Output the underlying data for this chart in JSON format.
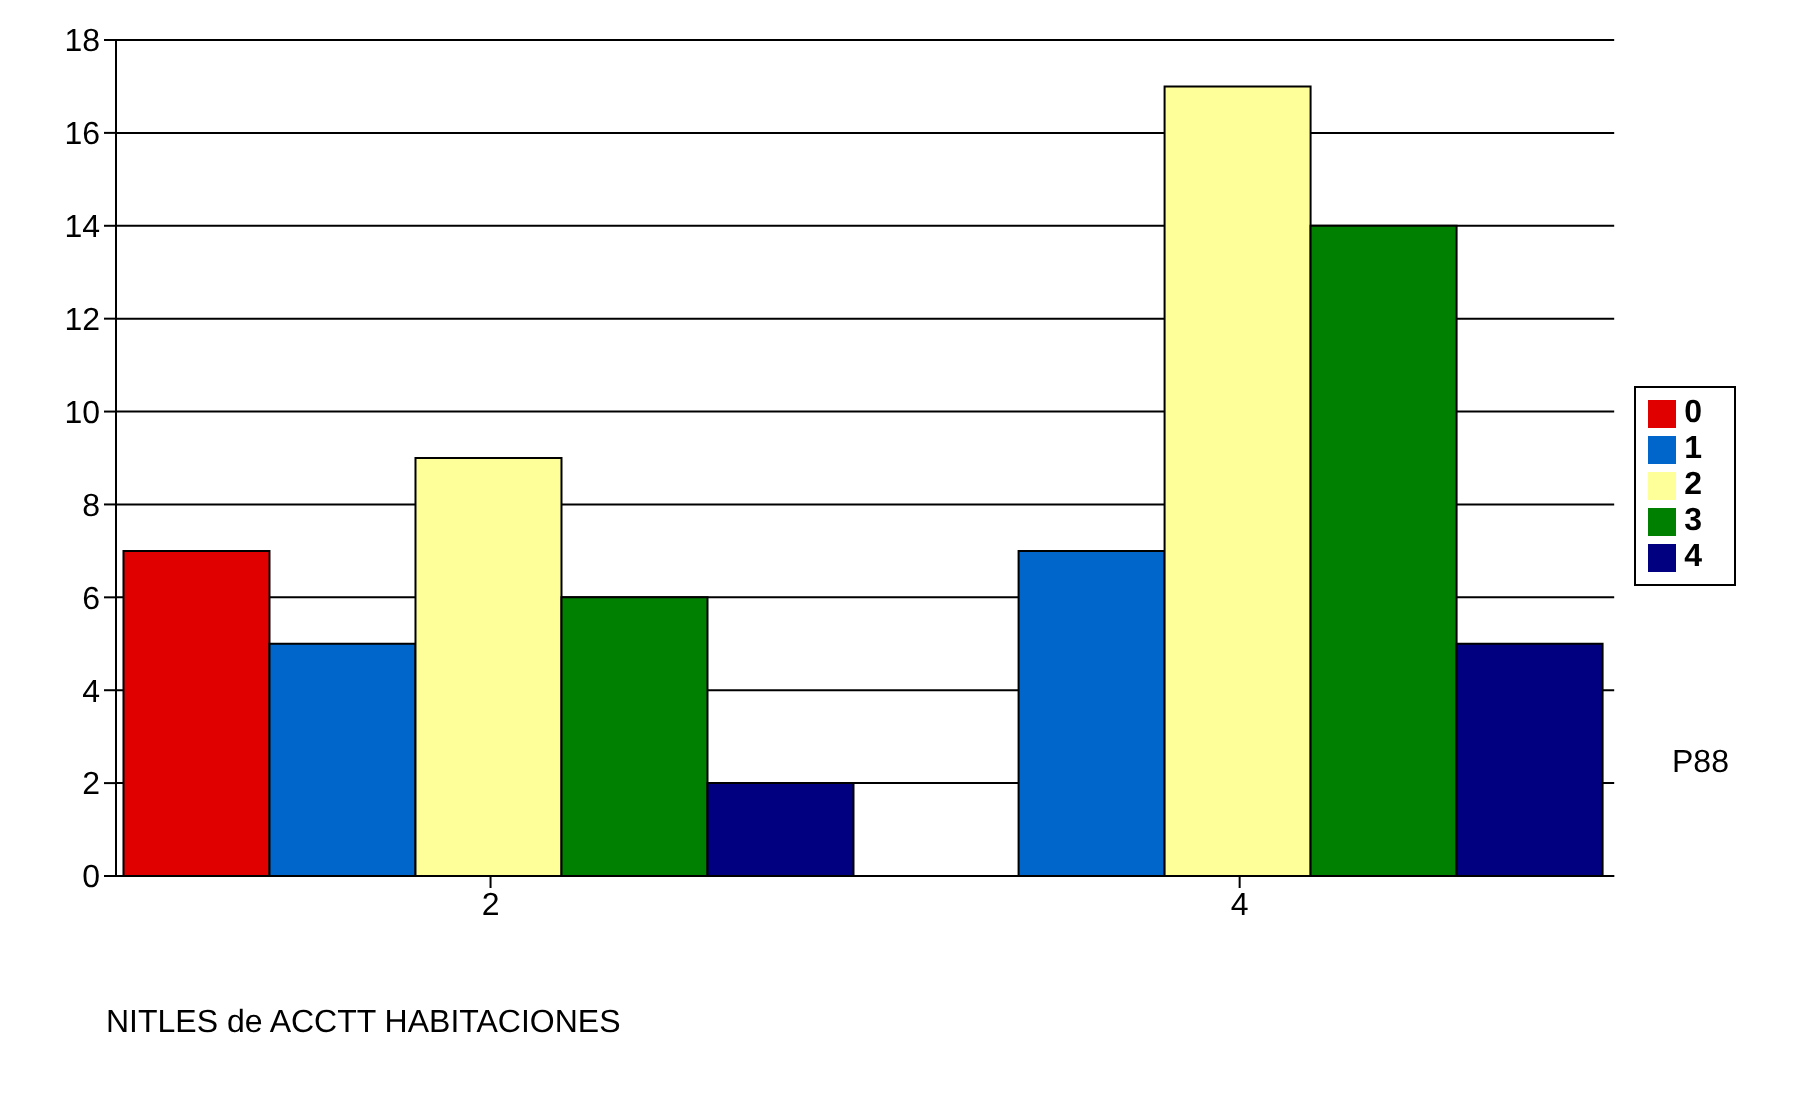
{
  "chart_data": {
    "type": "bar",
    "xlabel": "NITLES de ACCTT HABITACIONES",
    "categories": [
      "2",
      "4"
    ],
    "series": [
      {
        "name": "0",
        "color": "#e00000",
        "values": [
          7,
          null
        ]
      },
      {
        "name": "1",
        "color": "#0066cc",
        "values": [
          5,
          7
        ]
      },
      {
        "name": "2",
        "color": "#ffff99",
        "values": [
          9,
          17
        ]
      },
      {
        "name": "3",
        "color": "#008000",
        "values": [
          6,
          14
        ]
      },
      {
        "name": "4",
        "color": "#000080",
        "values": [
          2,
          5
        ]
      }
    ],
    "ylim": [
      0,
      18
    ],
    "yticks": [
      0,
      2,
      4,
      6,
      8,
      10,
      12,
      14,
      16,
      18
    ],
    "grid": "y",
    "legend": "right",
    "annotations": [
      "P88"
    ]
  }
}
